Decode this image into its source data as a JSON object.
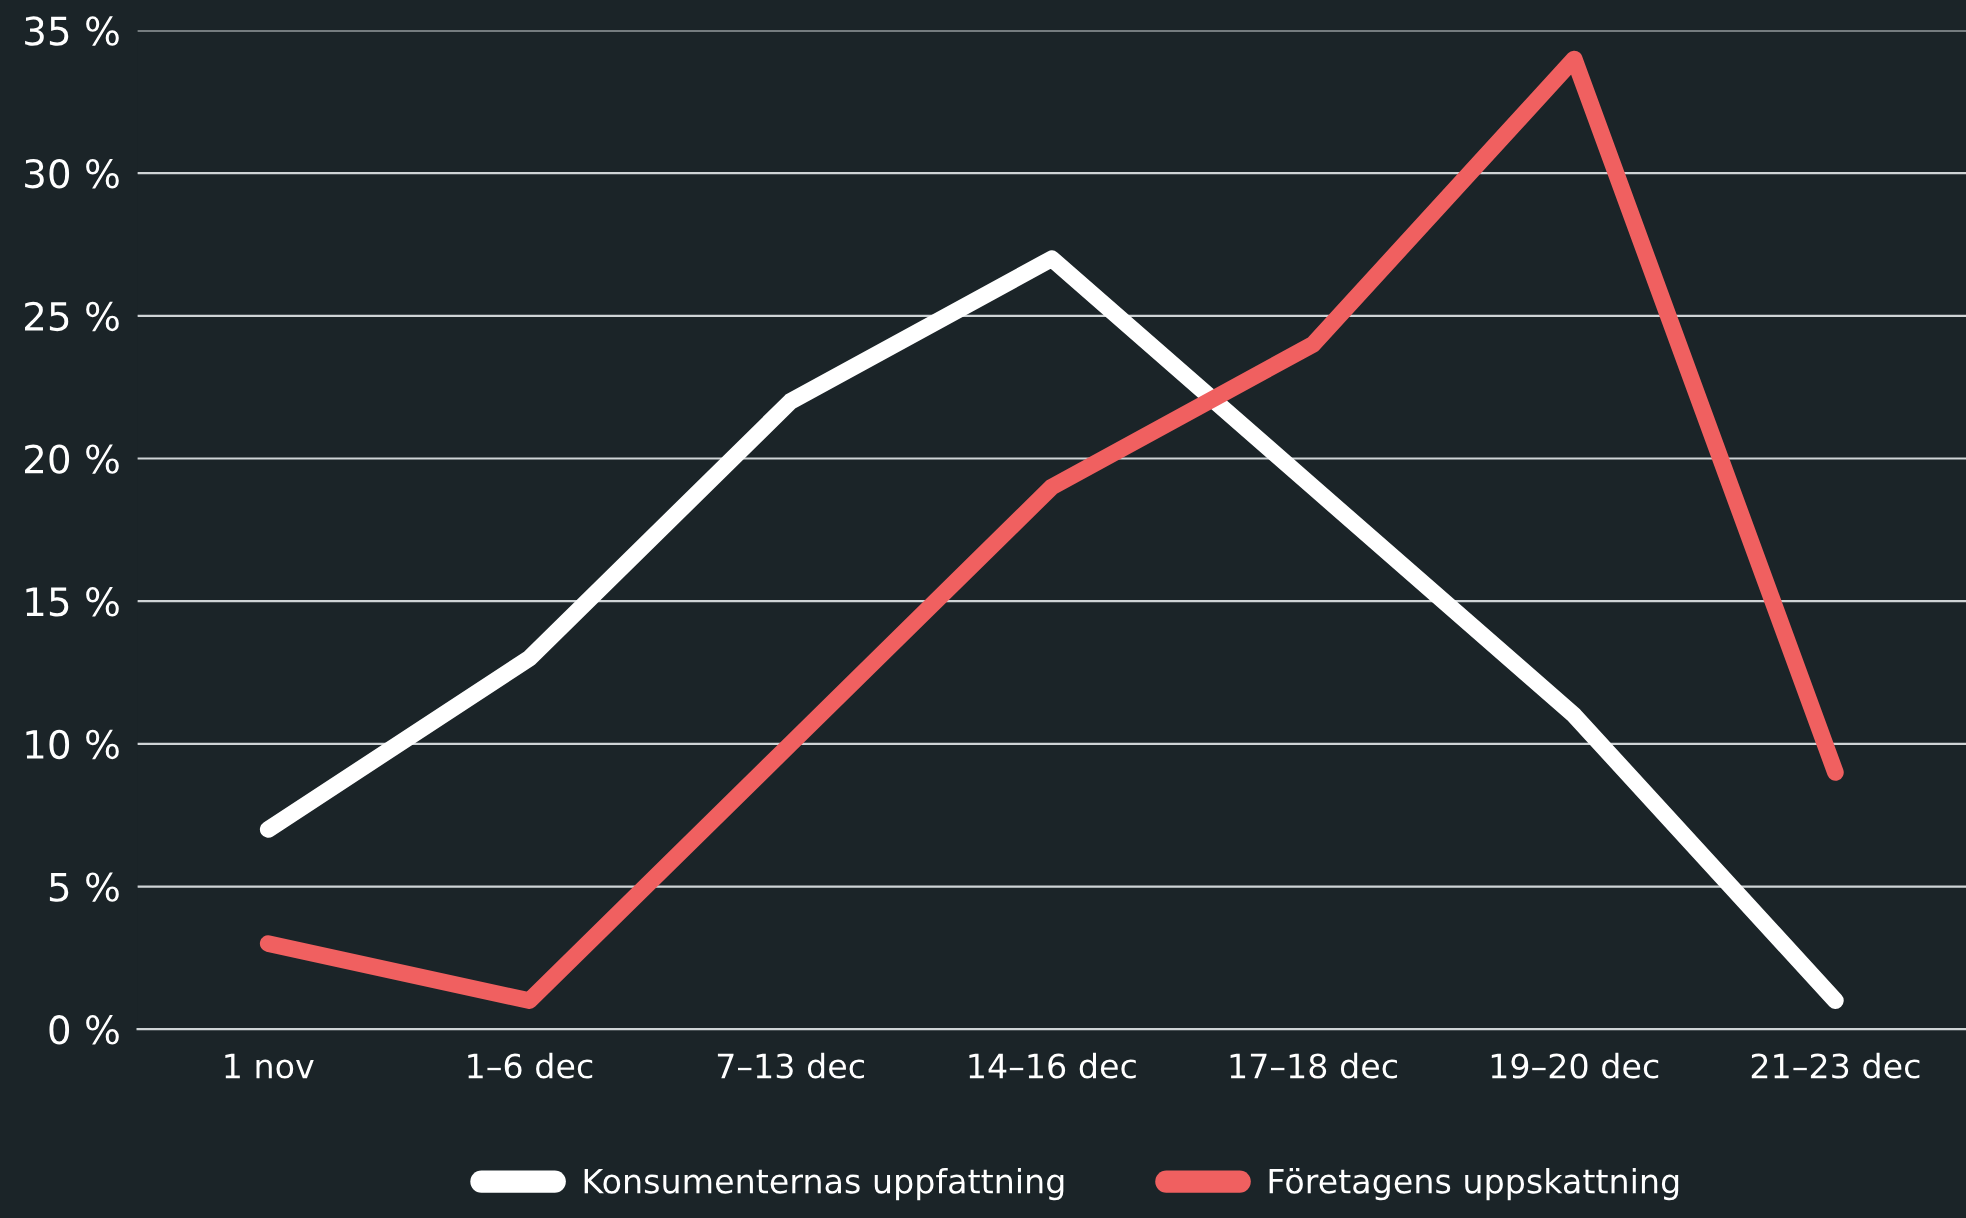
{
  "chart_data": {
    "type": "line",
    "categories": [
      "1 nov",
      "1–6 dec",
      "7–13 dec",
      "14–16 dec",
      "17–18 dec",
      "19–20 dec",
      "21–23 dec"
    ],
    "series": [
      {
        "name": "Konsumenternas uppfattning",
        "color": "#ffffff",
        "values": [
          7,
          13,
          22,
          27,
          19,
          11,
          1
        ]
      },
      {
        "name": "Företagens uppskattning",
        "color": "#f06060",
        "values": [
          3,
          1,
          10,
          19,
          24,
          34,
          9
        ]
      }
    ],
    "ylim": [
      0,
      35
    ],
    "yticks": [
      {
        "value": 0,
        "label": "0 %"
      },
      {
        "value": 5,
        "label": "5 %"
      },
      {
        "value": 10,
        "label": "10 %"
      },
      {
        "value": 15,
        "label": "15 %"
      },
      {
        "value": 20,
        "label": "20 %"
      },
      {
        "value": 25,
        "label": "25 %"
      },
      {
        "value": 30,
        "label": "30 %"
      },
      {
        "value": 35,
        "label": "35 %"
      }
    ],
    "grid": "y",
    "legend": "bottom",
    "marker": "none",
    "line_style": "solid"
  }
}
